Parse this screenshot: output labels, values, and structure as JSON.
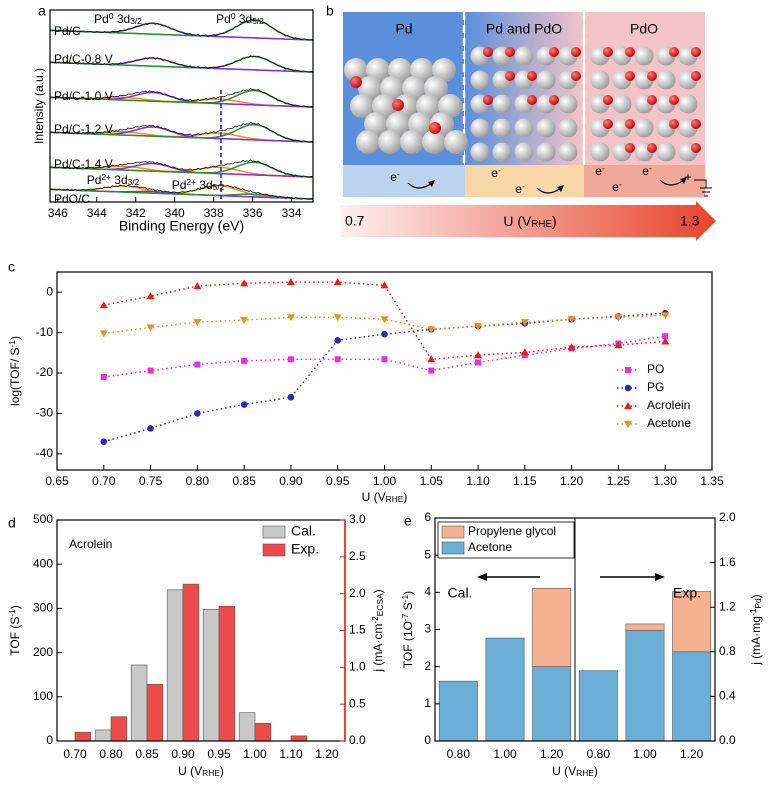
{
  "chart_data": [
    {
      "type": "spectra",
      "panel_label": "a",
      "xlabel": "Binding Energy (eV)",
      "ylabel": "Intensity (a.u.)",
      "xlim": [
        346.4,
        332.9
      ],
      "xticks": [
        346,
        344,
        342,
        340,
        338,
        336,
        334
      ],
      "spectra": [
        "Pd/C",
        "Pd/C-0.8 V",
        "Pd/C-1.0 V",
        "Pd/C-1.2 V",
        "Pd/C-1.4 V",
        "PdO/C"
      ],
      "peak_labels": [
        [
          "Pd",
          {
            "sup": "0"
          },
          " 3d",
          {
            "sub": "3/2"
          }
        ],
        [
          "Pd",
          {
            "sup": "0"
          },
          " 3d",
          {
            "sub": "5/2"
          }
        ],
        [
          "Pd",
          {
            "sup": "2+"
          },
          " 3d",
          {
            "sub": "3/2"
          }
        ],
        [
          "Pd",
          {
            "sup": "2+"
          },
          " 3d",
          {
            "sub": "5/2"
          }
        ]
      ]
    },
    {
      "type": "line",
      "panel_label": "c",
      "xlabel": [
        "U (V",
        {
          "sub": "RHE"
        },
        ")"
      ],
      "ylabel": [
        "log(TOF/ S",
        {
          "sup": "-1"
        },
        ")"
      ],
      "xlim": [
        0.65,
        1.35
      ],
      "ylim": [
        -44,
        5
      ],
      "xticks": [
        0.65,
        {
          "value": 0.7,
          "label": "0.70"
        },
        0.75,
        {
          "value": 0.8,
          "label": "0.80"
        },
        0.85,
        {
          "value": 0.9,
          "label": "0.90"
        },
        0.95,
        {
          "value": 1,
          "label": "1.00"
        },
        1.05,
        {
          "value": 1.1,
          "label": "1.10"
        },
        1.15,
        {
          "value": 1.2,
          "label": "1.20"
        },
        1.25,
        {
          "value": 1.3,
          "label": "1.30"
        },
        1.35
      ],
      "yticks": [
        -40,
        -30,
        -20,
        -10,
        0
      ],
      "legend": "lower right",
      "x": [
        0.7,
        0.75,
        0.8,
        0.85,
        0.9,
        0.95,
        1,
        1.05,
        1.1,
        1.15,
        1.2,
        1.25,
        1.3
      ],
      "series": [
        {
          "name": "PO",
          "color": "#e62ee6",
          "marker": "square",
          "values": [
            -21,
            -19.4,
            -17.9,
            -17,
            -16.6,
            -16.6,
            -16.6,
            -19.4,
            -17.4,
            -15.6,
            -13.9,
            -12.7,
            -10.9
          ]
        },
        {
          "name": "PG",
          "color": "#1f2fc0",
          "marker": "circle",
          "values": [
            -37,
            -33.7,
            -30,
            -27.8,
            -26,
            -11.9,
            -10.4,
            -9.2,
            -8.4,
            -7.7,
            -6.7,
            -6,
            -5.2
          ]
        },
        {
          "name": "Acrolein",
          "color": "#e0201b",
          "marker": "triangle-up",
          "values": [
            -3.2,
            -1,
            1.5,
            2.2,
            2.5,
            2.5,
            1.7,
            -16.6,
            -15.6,
            -14.9,
            -13.6,
            -13.1,
            -12.2
          ]
        },
        {
          "name": "Acetone",
          "color": "#f0901c",
          "marker": "triangle-down",
          "values": [
            -10.2,
            -8.7,
            -7.4,
            -6.9,
            -6.2,
            -6.2,
            -6.7,
            -9.2,
            -8.4,
            -7.4,
            -6.7,
            -6.2,
            -5.7
          ]
        }
      ]
    },
    {
      "type": "bar",
      "panel_label": "d",
      "annotation": "Acrolein",
      "xlabel": [
        "U (V",
        {
          "sub": "RHE"
        },
        ")"
      ],
      "ylabel": [
        "TOF (S",
        {
          "sup": "-1"
        },
        ")"
      ],
      "y2label": [
        "j (mA·cm",
        {
          "sup": "-2"
        },
        {
          "sub": "ECSA"
        },
        ")"
      ],
      "categories": [
        "0.70",
        "0.80",
        "0.85",
        "0.90",
        "0.95",
        "1.00",
        "1.10",
        "1.20"
      ],
      "ylim": [
        0,
        500
      ],
      "yticks": [
        0,
        100,
        200,
        300,
        400,
        500
      ],
      "y2lim": [
        0,
        3
      ],
      "y2ticks": [
        {
          "value": 0,
          "label": "0.0"
        },
        0.5,
        {
          "value": 1,
          "label": "1.0"
        },
        1.5,
        {
          "value": 2,
          "label": "2.0"
        },
        2.5,
        {
          "value": 3,
          "label": "3.0"
        }
      ],
      "y2color": "#e02020",
      "legend": "upper right",
      "series": [
        {
          "name": "Cal.",
          "color": "#c8c8c8",
          "values": [
            null,
            25,
            172,
            342,
            298,
            64,
            null,
            null
          ]
        },
        {
          "name": "Exp.",
          "color": "#ee4a4a",
          "axis": "y2",
          "values": [
            0.12,
            0.33,
            0.77,
            2.13,
            1.83,
            0.24,
            0.07,
            null
          ]
        }
      ]
    },
    {
      "type": "stacked_bar",
      "panel_label": "e",
      "xlabel": [
        "U (V",
        {
          "sub": "RHE"
        },
        ")"
      ],
      "ylabel": [
        "TOF (1O",
        {
          "sup": "-7"
        },
        " S",
        {
          "sup": "-1"
        },
        ")"
      ],
      "y2label": [
        "j (mA·mg",
        {
          "sup": "-1"
        },
        {
          "sub": "Pd"
        },
        ")"
      ],
      "categories": [
        "0.80",
        "1.00",
        "1.20",
        "0.80",
        "1.00",
        "1.20"
      ],
      "category_axis": [
        "y",
        "y",
        "y",
        "y2",
        "y2",
        "y2"
      ],
      "ylim": [
        0,
        6
      ],
      "yticks": [
        0,
        1,
        2,
        3,
        4,
        5,
        6
      ],
      "y2lim": [
        0,
        2
      ],
      "y2ticks": [
        {
          "value": 0,
          "label": "0.0"
        },
        0.4,
        0.8,
        1.2,
        1.6,
        {
          "value": 2,
          "label": "2.0"
        }
      ],
      "legend": "upper left",
      "annotations": [
        "Cal.",
        "Exp."
      ],
      "series": [
        {
          "name": "Acetone",
          "color": "#6baed6",
          "values": [
            1.61,
            2.77,
            2.0,
            0.63,
            0.99,
            0.8
          ]
        },
        {
          "name": "Propylene glycol",
          "color": "#f5b293",
          "values": [
            null,
            null,
            2.11,
            null,
            0.06,
            0.54
          ]
        }
      ]
    }
  ],
  "diagram": {
    "panel_label": "b",
    "regions": [
      "Pd",
      "Pd and PdO",
      "PdO"
    ],
    "electrons": [
      [
        "e",
        {
          "sup": "-"
        }
      ],
      [
        "e",
        {
          "sup": "-"
        }
      ],
      [
        "e",
        {
          "sup": "-"
        }
      ],
      [
        "e",
        {
          "sup": "-"
        }
      ],
      [
        "e",
        {
          "sup": "-"
        }
      ],
      [
        "e",
        {
          "sup": "-"
        }
      ]
    ],
    "charge": "+",
    "axis_start": 0.7,
    "axis_label": [
      "U (V",
      {
        "sub": "RHE"
      },
      ")"
    ],
    "axis_end": 1.3
  }
}
